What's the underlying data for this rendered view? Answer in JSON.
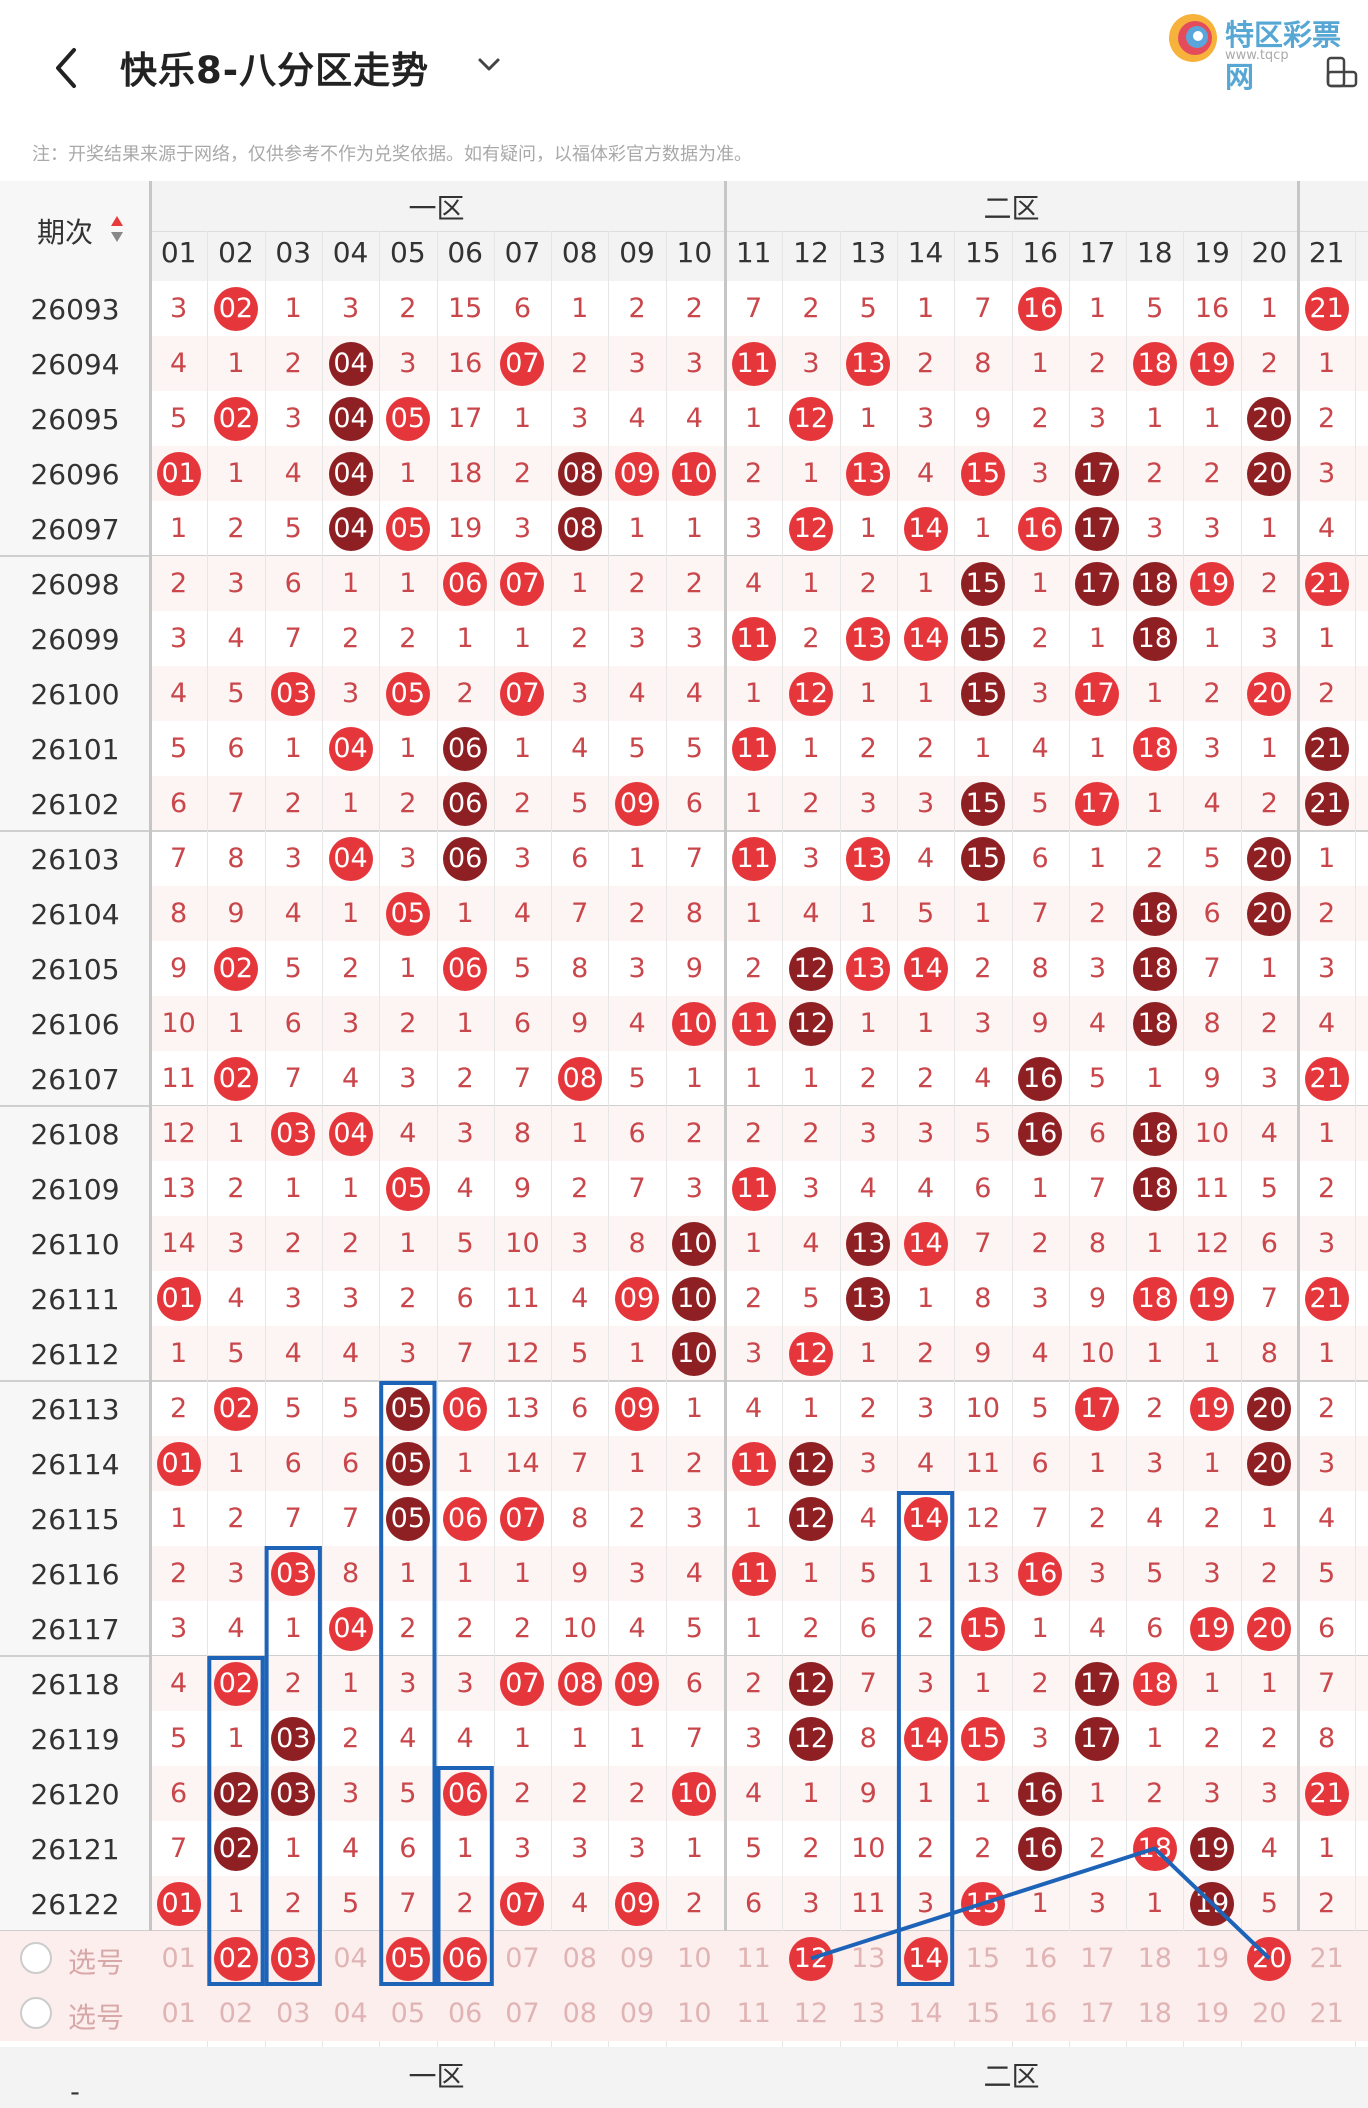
{
  "header": {
    "title": "快乐8-八分区走势",
    "logo_text": "特区彩票网",
    "logo_sub": "www.tqcp"
  },
  "note": "注：开奖结果来源于网络，仅供参考不作为兑奖依据。如有疑问，以福体彩官方数据为准。",
  "table": {
    "period_label": "期次",
    "zones": [
      "一区",
      "二区"
    ],
    "columns": [
      "01",
      "02",
      "03",
      "04",
      "05",
      "06",
      "07",
      "08",
      "09",
      "10",
      "11",
      "12",
      "13",
      "14",
      "15",
      "16",
      "17",
      "18",
      "19",
      "20",
      "21"
    ],
    "rows": [
      {
        "period": "26093",
        "cells": [
          "3",
          "02",
          "1",
          "3",
          "2",
          "15",
          "6",
          "1",
          "2",
          "2",
          "7",
          "2",
          "5",
          "1",
          "7",
          "16",
          "1",
          "5",
          "16",
          "1",
          "21"
        ]
      },
      {
        "period": "26094",
        "cells": [
          "4",
          "1",
          "2",
          "04",
          "3",
          "16",
          "07",
          "2",
          "3",
          "3",
          "11",
          "3",
          "13",
          "2",
          "8",
          "1",
          "2",
          "18",
          "19",
          "2",
          "1"
        ]
      },
      {
        "period": "26095",
        "cells": [
          "5",
          "02",
          "3",
          "04",
          "05",
          "17",
          "1",
          "3",
          "4",
          "4",
          "1",
          "12",
          "1",
          "3",
          "9",
          "2",
          "3",
          "1",
          "1",
          "20",
          "2"
        ]
      },
      {
        "period": "26096",
        "cells": [
          "01",
          "1",
          "4",
          "04",
          "1",
          "18",
          "2",
          "08",
          "09",
          "10",
          "2",
          "1",
          "13",
          "4",
          "15",
          "3",
          "17",
          "2",
          "2",
          "20",
          "3"
        ]
      },
      {
        "period": "26097",
        "cells": [
          "1",
          "2",
          "5",
          "04",
          "05",
          "19",
          "3",
          "08",
          "1",
          "1",
          "3",
          "12",
          "1",
          "14",
          "1",
          "16",
          "17",
          "3",
          "3",
          "1",
          "4"
        ]
      },
      {
        "period": "26098",
        "cells": [
          "2",
          "3",
          "6",
          "1",
          "1",
          "06",
          "07",
          "1",
          "2",
          "2",
          "4",
          "1",
          "2",
          "1",
          "15",
          "1",
          "17",
          "18",
          "19",
          "2",
          "21"
        ]
      },
      {
        "period": "26099",
        "cells": [
          "3",
          "4",
          "7",
          "2",
          "2",
          "1",
          "1",
          "2",
          "3",
          "3",
          "11",
          "2",
          "13",
          "14",
          "15",
          "2",
          "1",
          "18",
          "1",
          "3",
          "1"
        ]
      },
      {
        "period": "26100",
        "cells": [
          "4",
          "5",
          "03",
          "3",
          "05",
          "2",
          "07",
          "3",
          "4",
          "4",
          "1",
          "12",
          "1",
          "1",
          "15",
          "3",
          "17",
          "1",
          "2",
          "20",
          "2"
        ]
      },
      {
        "period": "26101",
        "cells": [
          "5",
          "6",
          "1",
          "04",
          "1",
          "06",
          "1",
          "4",
          "5",
          "5",
          "11",
          "1",
          "2",
          "2",
          "1",
          "4",
          "1",
          "18",
          "3",
          "1",
          "21"
        ]
      },
      {
        "period": "26102",
        "cells": [
          "6",
          "7",
          "2",
          "1",
          "2",
          "06",
          "2",
          "5",
          "09",
          "6",
          "1",
          "2",
          "3",
          "3",
          "15",
          "5",
          "17",
          "1",
          "4",
          "2",
          "21"
        ]
      },
      {
        "period": "26103",
        "cells": [
          "7",
          "8",
          "3",
          "04",
          "3",
          "06",
          "3",
          "6",
          "1",
          "7",
          "11",
          "3",
          "13",
          "4",
          "15",
          "6",
          "1",
          "2",
          "5",
          "20",
          "1"
        ]
      },
      {
        "period": "26104",
        "cells": [
          "8",
          "9",
          "4",
          "1",
          "05",
          "1",
          "4",
          "7",
          "2",
          "8",
          "1",
          "4",
          "1",
          "5",
          "1",
          "7",
          "2",
          "18",
          "6",
          "20",
          "2"
        ]
      },
      {
        "period": "26105",
        "cells": [
          "9",
          "02",
          "5",
          "2",
          "1",
          "06",
          "5",
          "8",
          "3",
          "9",
          "2",
          "12",
          "13",
          "14",
          "2",
          "8",
          "3",
          "18",
          "7",
          "1",
          "3"
        ]
      },
      {
        "period": "26106",
        "cells": [
          "10",
          "1",
          "6",
          "3",
          "2",
          "1",
          "6",
          "9",
          "4",
          "10",
          "11",
          "12",
          "1",
          "1",
          "3",
          "9",
          "4",
          "18",
          "8",
          "2",
          "4"
        ]
      },
      {
        "period": "26107",
        "cells": [
          "11",
          "02",
          "7",
          "4",
          "3",
          "2",
          "7",
          "08",
          "5",
          "1",
          "1",
          "1",
          "2",
          "2",
          "4",
          "16",
          "5",
          "1",
          "9",
          "3",
          "21"
        ]
      },
      {
        "period": "26108",
        "cells": [
          "12",
          "1",
          "03",
          "04",
          "4",
          "3",
          "8",
          "1",
          "6",
          "2",
          "2",
          "2",
          "3",
          "3",
          "5",
          "16",
          "6",
          "18",
          "10",
          "4",
          "1"
        ]
      },
      {
        "period": "26109",
        "cells": [
          "13",
          "2",
          "1",
          "1",
          "05",
          "4",
          "9",
          "2",
          "7",
          "3",
          "11",
          "3",
          "4",
          "4",
          "6",
          "1",
          "7",
          "18",
          "11",
          "5",
          "2"
        ]
      },
      {
        "period": "26110",
        "cells": [
          "14",
          "3",
          "2",
          "2",
          "1",
          "5",
          "10",
          "3",
          "8",
          "10",
          "1",
          "4",
          "13",
          "14",
          "7",
          "2",
          "8",
          "1",
          "12",
          "6",
          "3"
        ]
      },
      {
        "period": "26111",
        "cells": [
          "01",
          "4",
          "3",
          "3",
          "2",
          "6",
          "11",
          "4",
          "09",
          "10",
          "2",
          "5",
          "13",
          "1",
          "8",
          "3",
          "9",
          "18",
          "19",
          "7",
          "21"
        ]
      },
      {
        "period": "26112",
        "cells": [
          "1",
          "5",
          "4",
          "4",
          "3",
          "7",
          "12",
          "5",
          "1",
          "10",
          "3",
          "12",
          "1",
          "2",
          "9",
          "4",
          "10",
          "1",
          "1",
          "8",
          "1"
        ]
      },
      {
        "period": "26113",
        "cells": [
          "2",
          "02",
          "5",
          "5",
          "05",
          "06",
          "13",
          "6",
          "09",
          "1",
          "4",
          "1",
          "2",
          "3",
          "10",
          "5",
          "17",
          "2",
          "19",
          "20",
          "2"
        ]
      },
      {
        "period": "26114",
        "cells": [
          "01",
          "1",
          "6",
          "6",
          "05",
          "1",
          "14",
          "7",
          "1",
          "2",
          "11",
          "12",
          "3",
          "4",
          "11",
          "6",
          "1",
          "3",
          "1",
          "20",
          "3"
        ]
      },
      {
        "period": "26115",
        "cells": [
          "1",
          "2",
          "7",
          "7",
          "05",
          "06",
          "07",
          "8",
          "2",
          "3",
          "1",
          "12",
          "4",
          "14",
          "12",
          "7",
          "2",
          "4",
          "2",
          "1",
          "4"
        ]
      },
      {
        "period": "26116",
        "cells": [
          "2",
          "3",
          "03",
          "8",
          "1",
          "1",
          "1",
          "9",
          "3",
          "4",
          "11",
          "1",
          "5",
          "1",
          "13",
          "16",
          "3",
          "5",
          "3",
          "2",
          "5"
        ]
      },
      {
        "period": "26117",
        "cells": [
          "3",
          "4",
          "1",
          "04",
          "2",
          "2",
          "2",
          "10",
          "4",
          "5",
          "1",
          "2",
          "6",
          "2",
          "15",
          "1",
          "4",
          "6",
          "19",
          "20",
          "6"
        ]
      },
      {
        "period": "26118",
        "cells": [
          "4",
          "02",
          "2",
          "1",
          "3",
          "3",
          "07",
          "08",
          "09",
          "6",
          "2",
          "12",
          "7",
          "3",
          "1",
          "2",
          "17",
          "18",
          "1",
          "1",
          "7"
        ]
      },
      {
        "period": "26119",
        "cells": [
          "5",
          "1",
          "03",
          "2",
          "4",
          "4",
          "1",
          "1",
          "1",
          "7",
          "3",
          "12",
          "8",
          "14",
          "15",
          "3",
          "17",
          "1",
          "2",
          "2",
          "8"
        ]
      },
      {
        "period": "26120",
        "cells": [
          "6",
          "02",
          "03",
          "3",
          "5",
          "06",
          "2",
          "2",
          "2",
          "10",
          "4",
          "1",
          "9",
          "1",
          "1",
          "16",
          "1",
          "2",
          "3",
          "3",
          "21"
        ]
      },
      {
        "period": "26121",
        "cells": [
          "7",
          "02",
          "1",
          "4",
          "6",
          "1",
          "3",
          "3",
          "3",
          "1",
          "5",
          "2",
          "10",
          "2",
          "2",
          "16",
          "2",
          "18",
          "19",
          "4",
          "1"
        ]
      },
      {
        "period": "26122",
        "cells": [
          "01",
          "1",
          "2",
          "5",
          "7",
          "2",
          "07",
          "4",
          "09",
          "2",
          "6",
          "3",
          "11",
          "3",
          "15",
          "1",
          "3",
          "1",
          "19",
          "5",
          "2"
        ]
      }
    ],
    "pick_label": "选号",
    "pick_selected": [
      "02",
      "03",
      "05",
      "06",
      "12",
      "14",
      "20"
    ]
  }
}
